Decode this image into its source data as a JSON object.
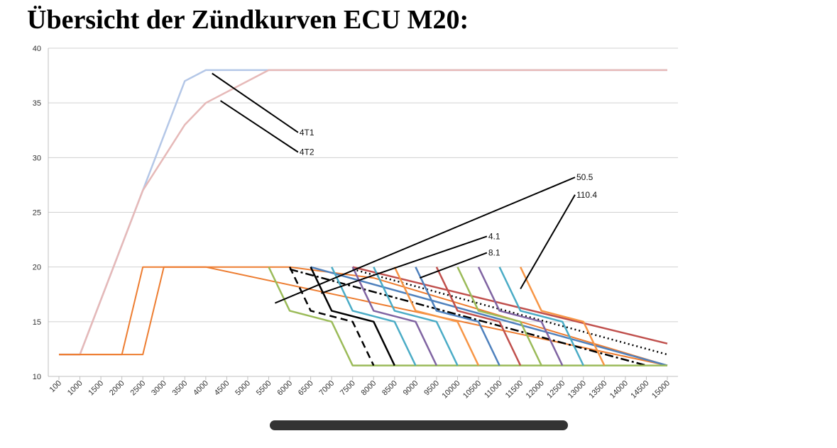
{
  "title": "Übersicht der Zündkurven ECU M20:",
  "chart_data": {
    "type": "line",
    "title": "Übersicht der Zündkurven ECU M20:",
    "xlabel": "",
    "ylabel": "",
    "categories": [
      "100",
      "1000",
      "1500",
      "2000",
      "2500",
      "3000",
      "3500",
      "4000",
      "4500",
      "5000",
      "5500",
      "6000",
      "6500",
      "7000",
      "7500",
      "8000",
      "8500",
      "9000",
      "9500",
      "10000",
      "10500",
      "11000",
      "11500",
      "12000",
      "12500",
      "13000",
      "13500",
      "14000",
      "14500",
      "15000"
    ],
    "ylim": [
      10,
      40
    ],
    "yticks": [
      10,
      15,
      20,
      25,
      30,
      35,
      40
    ],
    "grid": "horizontal",
    "legend": "none",
    "series": [
      {
        "color": "#b4c7e7",
        "width": 2.5,
        "points": [
          [
            0,
            12
          ],
          [
            1,
            12
          ],
          [
            4,
            27
          ],
          [
            6,
            37
          ],
          [
            7,
            38
          ],
          [
            29,
            38
          ]
        ]
      },
      {
        "color": "#e6b9b8",
        "width": 2.5,
        "points": [
          [
            0,
            12
          ],
          [
            1,
            12
          ],
          [
            4,
            27
          ],
          [
            5,
            30
          ],
          [
            6,
            33
          ],
          [
            7,
            35
          ],
          [
            10,
            38
          ],
          [
            29,
            38
          ]
        ]
      },
      {
        "color": "#ed7d31",
        "width": 2,
        "points": [
          [
            0,
            12
          ],
          [
            3,
            12
          ],
          [
            4,
            20
          ],
          [
            5,
            20
          ],
          [
            7,
            20
          ],
          [
            29,
            11
          ]
        ]
      },
      {
        "color": "#ed7d31",
        "width": 2,
        "points": [
          [
            0,
            12
          ],
          [
            4,
            12
          ],
          [
            5,
            20
          ],
          [
            10,
            20
          ],
          [
            11,
            20
          ],
          [
            15,
            19
          ],
          [
            29,
            11
          ]
        ]
      },
      {
        "color": "#c0504d",
        "width": 2.5,
        "points": [
          [
            14,
            20
          ],
          [
            29,
            13
          ]
        ]
      },
      {
        "color": "#4f81bd",
        "width": 2.5,
        "points": [
          [
            12,
            20
          ],
          [
            29,
            11
          ]
        ]
      },
      {
        "color": "#000000",
        "width": 2.5,
        "dash": "2 4",
        "points": [
          [
            14,
            19.8
          ],
          [
            29,
            12
          ]
        ]
      },
      {
        "color": "#000000",
        "width": 2.5,
        "dash": "12 4 3 4",
        "points": [
          [
            11,
            19.8
          ],
          [
            28,
            11
          ]
        ]
      },
      {
        "color": "#9bbb59",
        "width": 2.5,
        "points": [
          [
            10,
            20
          ],
          [
            11,
            16
          ],
          [
            13,
            15
          ],
          [
            14,
            11
          ],
          [
            29,
            11
          ]
        ]
      },
      {
        "color": "#000000",
        "width": 2.5,
        "dash": "10 6",
        "points": [
          [
            11,
            20
          ],
          [
            12,
            16
          ],
          [
            14,
            15
          ],
          [
            15,
            11
          ]
        ]
      },
      {
        "color": "#000000",
        "width": 2.5,
        "points": [
          [
            12,
            20
          ],
          [
            13,
            16
          ],
          [
            15,
            15
          ],
          [
            16,
            11
          ]
        ]
      },
      {
        "color": "#4bacc6",
        "width": 2.5,
        "points": [
          [
            13,
            20
          ],
          [
            14,
            16
          ],
          [
            16,
            15
          ],
          [
            17,
            11
          ]
        ]
      },
      {
        "color": "#8064a2",
        "width": 2.5,
        "points": [
          [
            14,
            20
          ],
          [
            15,
            16
          ],
          [
            17,
            15
          ],
          [
            18,
            11
          ]
        ]
      },
      {
        "color": "#4bacc6",
        "width": 2.5,
        "points": [
          [
            15,
            20
          ],
          [
            16,
            16
          ],
          [
            18,
            15
          ],
          [
            19,
            11
          ]
        ]
      },
      {
        "color": "#f79646",
        "width": 2.5,
        "points": [
          [
            16,
            20
          ],
          [
            17,
            16
          ],
          [
            19,
            15
          ],
          [
            20,
            11
          ]
        ]
      },
      {
        "color": "#4f81bd",
        "width": 2.5,
        "points": [
          [
            17,
            20
          ],
          [
            18,
            16
          ],
          [
            20,
            15
          ],
          [
            21,
            11
          ]
        ]
      },
      {
        "color": "#c0504d",
        "width": 2.5,
        "points": [
          [
            18,
            20
          ],
          [
            19,
            16
          ],
          [
            21,
            15
          ],
          [
            22,
            11
          ]
        ]
      },
      {
        "color": "#9bbb59",
        "width": 2.5,
        "points": [
          [
            19,
            20
          ],
          [
            20,
            16
          ],
          [
            22,
            15
          ],
          [
            23,
            11
          ]
        ]
      },
      {
        "color": "#8064a2",
        "width": 2.5,
        "points": [
          [
            20,
            20
          ],
          [
            21,
            16
          ],
          [
            23,
            15
          ],
          [
            24,
            11
          ]
        ]
      },
      {
        "color": "#4bacc6",
        "width": 2.5,
        "points": [
          [
            21,
            20
          ],
          [
            22,
            16
          ],
          [
            24,
            15
          ],
          [
            25,
            11
          ]
        ]
      },
      {
        "color": "#f79646",
        "width": 2.5,
        "points": [
          [
            22,
            20
          ],
          [
            23,
            16
          ],
          [
            25,
            15
          ],
          [
            26,
            11
          ]
        ]
      }
    ],
    "annotations": [
      {
        "label": "4T1",
        "from": [
          7.3,
          37.7
        ],
        "to": [
          11.4,
          32.3
        ]
      },
      {
        "label": "4T2",
        "from": [
          7.7,
          35.2
        ],
        "to": [
          11.4,
          30.5
        ]
      },
      {
        "label": "50.5",
        "from": [
          10.3,
          16.7
        ],
        "to": [
          24.6,
          28.2
        ]
      },
      {
        "label": "110.4",
        "from": [
          22.0,
          18.0
        ],
        "to": [
          24.6,
          26.6
        ]
      },
      {
        "label": "4.1",
        "from": [
          12.5,
          17.6
        ],
        "to": [
          20.4,
          22.8
        ]
      },
      {
        "label": "8.1",
        "from": [
          17.2,
          19.0
        ],
        "to": [
          20.4,
          21.3
        ]
      }
    ]
  }
}
